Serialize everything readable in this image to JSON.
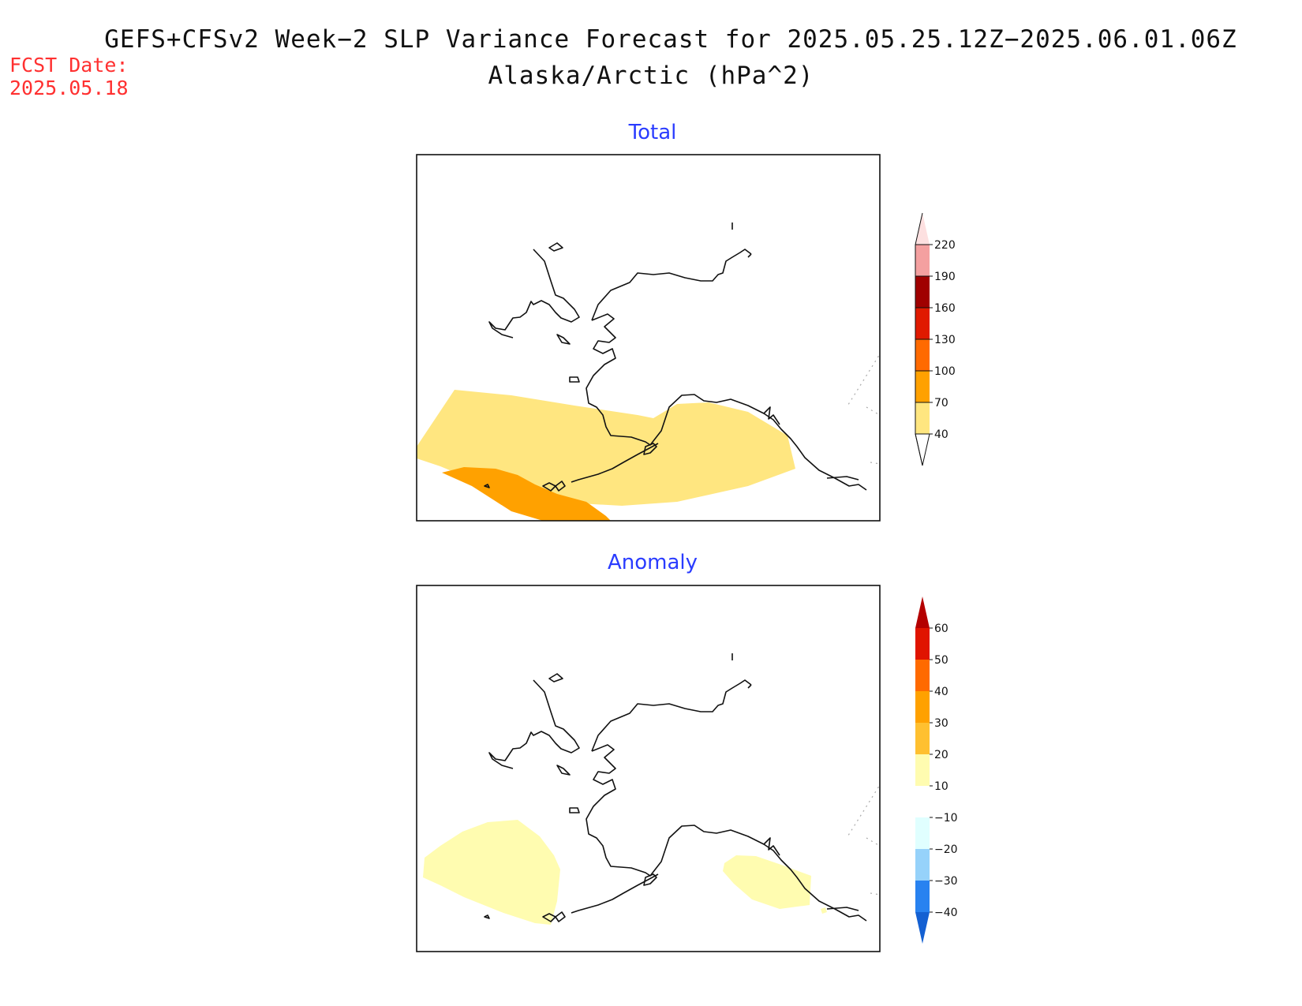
{
  "title_line1": "GEFS+CFSv2 Week−2 SLP Variance Forecast for 2025.05.25.12Z−2025.06.01.06Z",
  "title_line2": "Alaska/Arctic (hPa^2)",
  "fcst_label": "FCST Date:",
  "fcst_value": "2025.05.18",
  "panels": {
    "total": {
      "title": "Total",
      "colorbar": {
        "levels": [
          "40",
          "70",
          "100",
          "130",
          "160",
          "190",
          "220"
        ],
        "colors": [
          "#ffffff",
          "#ffe680",
          "#ffa100",
          "#ff6a00",
          "#e01a00",
          "#a00000",
          "#f4a0a0",
          "#fde0e0"
        ],
        "fill_regions": [
          {
            "name": "40-70 band",
            "color": "#ffe680"
          },
          {
            "name": "70-100 band",
            "color": "#ffa100"
          }
        ]
      }
    },
    "anomaly": {
      "title": "Anomaly",
      "colorbar": {
        "levels": [
          "60",
          "50",
          "40",
          "30",
          "20",
          "10",
          "−10",
          "−20",
          "−30",
          "−40"
        ],
        "colors": [
          "#b40000",
          "#e01400",
          "#ff6a00",
          "#ffa100",
          "#ffc030",
          "#fffcb0",
          "#ffffff",
          "#e0ffff",
          "#96d2fa",
          "#2882f0",
          "#1460d2"
        ],
        "fill_regions": [
          {
            "name": "10-20 band",
            "color": "#fffcb0"
          }
        ]
      }
    }
  }
}
